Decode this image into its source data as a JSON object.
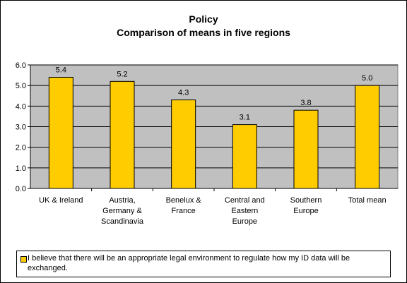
{
  "chart_data": {
    "type": "bar",
    "title": "Policy",
    "subtitle": "Comparison of means in five regions",
    "categories": [
      "UK & Ireland",
      "Austria, Germany & Scandinavia",
      "Benelux & France",
      "Central and Eastern Europe",
      "Southern Europe",
      "Total mean"
    ],
    "category_label_lines": [
      [
        "UK & Ireland"
      ],
      [
        "Austria,",
        "Germany &",
        "Scandinavia"
      ],
      [
        "Benelux &",
        "France"
      ],
      [
        "Central and",
        "Eastern",
        "Europe"
      ],
      [
        "Southern",
        "Europe"
      ],
      [
        "Total mean"
      ]
    ],
    "series": [
      {
        "name": "I believe that there will be an appropriate legal environment to regulate how my ID data will be exchanged.",
        "values": [
          5.4,
          5.2,
          4.3,
          3.1,
          3.8,
          5.0
        ],
        "data_labels": [
          "5.4",
          "5.2",
          "4.3",
          "3.1",
          "3.8",
          "5.0"
        ]
      }
    ],
    "y_ticks": [
      "0.0",
      "1.0",
      "2.0",
      "3.0",
      "4.0",
      "5.0",
      "6.0"
    ],
    "ylim": [
      0,
      6
    ],
    "grid": true,
    "legend_position": "bottom",
    "bar_color": "#ffcc00",
    "plot_background": "#c0c0c0"
  }
}
